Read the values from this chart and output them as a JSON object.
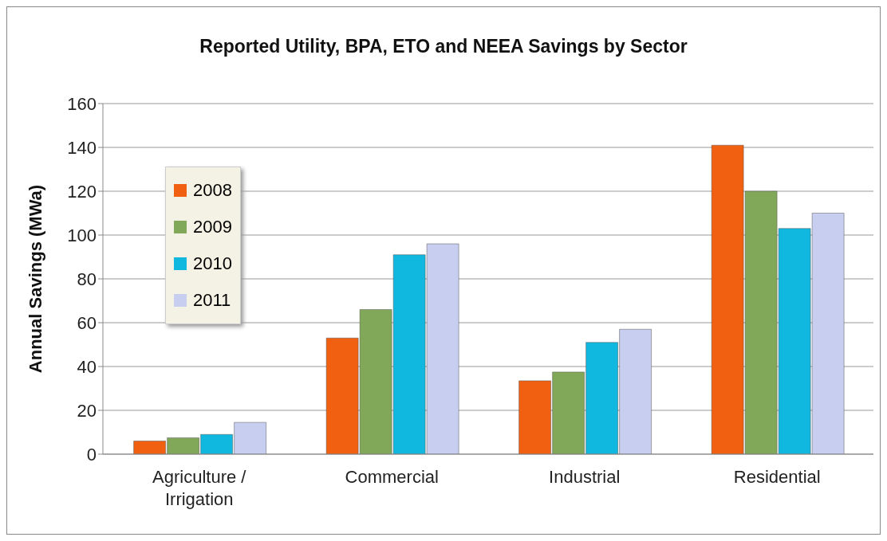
{
  "chart_data": {
    "type": "bar",
    "title": "Reported Utility, BPA, ETO and NEEA Savings by Sector",
    "ylabel": "Annual Savings (MWa)",
    "categories": [
      "Agriculture / Irrigation",
      "Commercial",
      "Industrial",
      "Residential"
    ],
    "series": [
      {
        "name": "2008",
        "color": "#f06010",
        "values": [
          6,
          53,
          33.5,
          141
        ]
      },
      {
        "name": "2009",
        "color": "#80a858",
        "values": [
          7.5,
          66,
          37.5,
          120
        ]
      },
      {
        "name": "2010",
        "color": "#10b8e0",
        "values": [
          9,
          91,
          51,
          103
        ]
      },
      {
        "name": "2011",
        "color": "#c8cef0",
        "values": [
          14.5,
          96,
          57,
          110
        ]
      }
    ],
    "ylim": [
      0,
      160
    ],
    "yticks": [
      0,
      20,
      40,
      60,
      80,
      100,
      120,
      140,
      160
    ],
    "grid": "y",
    "legend": "top left"
  }
}
